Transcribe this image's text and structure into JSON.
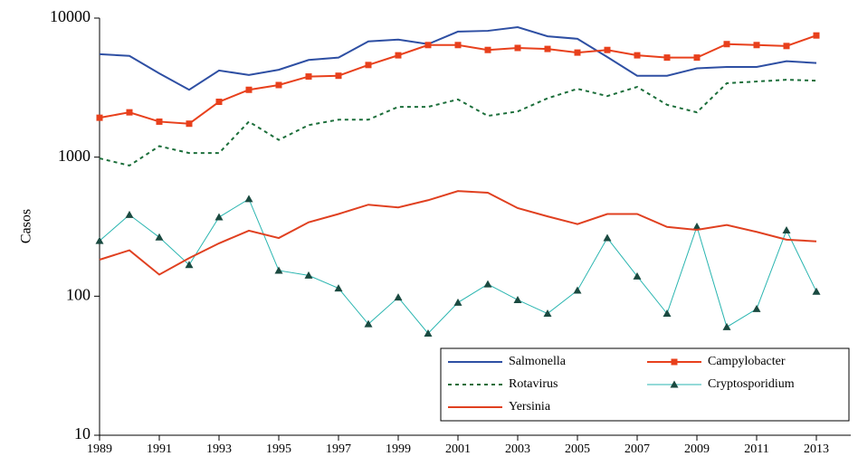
{
  "chart_data": {
    "type": "line",
    "y_label": "Casos",
    "log_scale": true,
    "grid": false,
    "legend": "lower-right",
    "x": [
      1989,
      1990,
      1991,
      1992,
      1993,
      1994,
      1995,
      1996,
      1997,
      1998,
      1999,
      2000,
      2001,
      2002,
      2003,
      2004,
      2005,
      2006,
      2007,
      2008,
      2009,
      2010,
      2011,
      2012,
      2013
    ],
    "xlim": [
      1989,
      2013
    ],
    "xticks": [
      1989,
      1991,
      1993,
      1995,
      1997,
      1999,
      2001,
      2003,
      2005,
      2007,
      2009,
      2011,
      2013
    ],
    "ylim": [
      10,
      10000
    ],
    "yticks": [
      10,
      100,
      1000,
      10000
    ],
    "series": [
      {
        "name": "Salmonella",
        "color": "#2e4fa3",
        "dash": false,
        "marker": "none",
        "values": [
          5500,
          5350,
          4000,
          3050,
          4200,
          3900,
          4250,
          5000,
          5200,
          6800,
          7000,
          6500,
          8000,
          8100,
          8600,
          7400,
          7100,
          5250,
          3850,
          3850,
          4350,
          4450,
          4450,
          4900,
          4750
        ]
      },
      {
        "name": "Campylobacter",
        "color": "#e8401c",
        "dash": false,
        "marker": "square",
        "values": [
          1920,
          2100,
          1800,
          1740,
          2500,
          3050,
          3300,
          3800,
          3850,
          4600,
          5400,
          6400,
          6400,
          5900,
          6100,
          6000,
          5650,
          5900,
          5400,
          5200,
          5200,
          6500,
          6400,
          6300,
          7500
        ]
      },
      {
        "name": "Rotavirus",
        "color": "#1b6e3a",
        "dash": true,
        "marker": "none",
        "values": [
          980,
          870,
          1200,
          1070,
          1070,
          1800,
          1330,
          1700,
          1860,
          1860,
          2300,
          2300,
          2600,
          1980,
          2130,
          2650,
          3100,
          2750,
          3200,
          2380,
          2100,
          3400,
          3500,
          3600,
          3550
        ]
      },
      {
        "name": "Cryptosporidium",
        "color": "#2ab5b0",
        "dash": false,
        "marker": "triangle",
        "values": [
          250,
          385,
          265,
          168,
          370,
          500,
          153,
          141,
          114,
          63,
          98,
          54,
          90,
          122,
          94,
          75,
          110,
          262,
          139,
          75,
          316,
          60,
          81,
          298,
          108
        ]
      },
      {
        "name": "Yersinia",
        "color": "#e04020",
        "dash": false,
        "marker": "none",
        "values": [
          183,
          214,
          143,
          188,
          240,
          296,
          262,
          340,
          390,
          455,
          435,
          490,
          570,
          555,
          430,
          375,
          330,
          390,
          390,
          315,
          300,
          325,
          290,
          255,
          248
        ]
      }
    ]
  }
}
